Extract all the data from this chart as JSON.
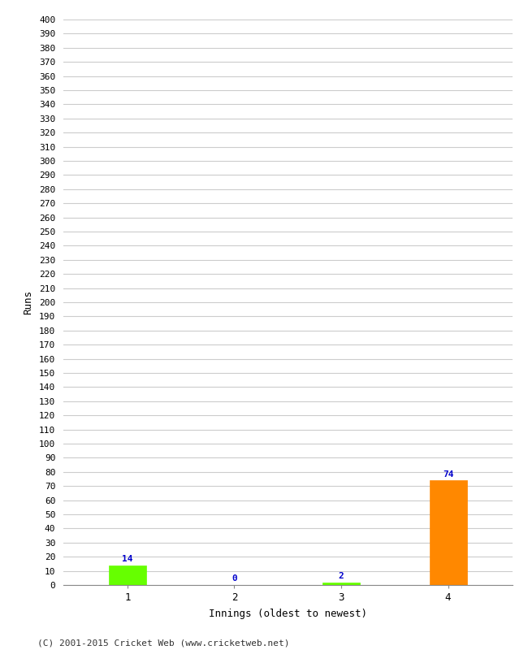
{
  "categories": [
    "1",
    "2",
    "3",
    "4"
  ],
  "values": [
    14,
    0,
    2,
    74
  ],
  "bar_colors": [
    "#66ff00",
    "#66ff00",
    "#66ff00",
    "#ff8800"
  ],
  "xlabel": "Innings (oldest to newest)",
  "ylabel": "Runs",
  "ylim": [
    0,
    400
  ],
  "ytick_step": 10,
  "background_color": "#ffffff",
  "grid_color": "#cccccc",
  "label_color": "#0000cc",
  "footer": "(C) 2001-2015 Cricket Web (www.cricketweb.net)",
  "bar_width": 0.35,
  "figsize": [
    6.5,
    8.0
  ],
  "dpi": 100
}
